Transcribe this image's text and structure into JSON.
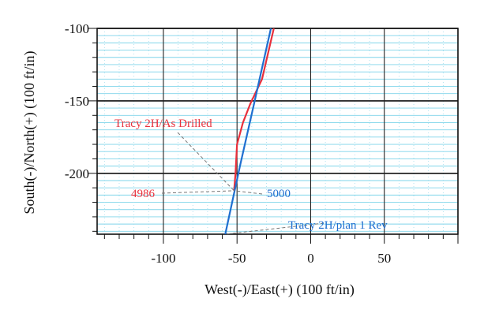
{
  "chart_data": {
    "type": "line",
    "xlabel": "West(-)/East(+) (100 ft/in)",
    "ylabel": "South(-)/North(+) (100 ft/in)",
    "xlim": [
      -145,
      100
    ],
    "ylim": [
      -242,
      -100
    ],
    "x_ticks": [
      -100,
      -50,
      0,
      50
    ],
    "y_ticks": [
      -100,
      -150,
      -200
    ],
    "tick_labels_x": [
      "-100",
      "-50",
      "0",
      "50"
    ],
    "tick_labels_y": [
      "-100",
      "-150",
      "-200"
    ],
    "grid": true,
    "series": [
      {
        "name": "Tracy 2H/As Drilled",
        "color": "#e8303c",
        "points": [
          [
            -25,
            -100
          ],
          [
            -33,
            -135
          ],
          [
            -41,
            -152
          ],
          [
            -46,
            -165
          ],
          [
            -50,
            -180
          ],
          [
            -51,
            -200
          ],
          [
            -52,
            -212
          ]
        ]
      },
      {
        "name": "Tracy 2H/plan 1 Rev",
        "color": "#1f6fd0",
        "points": [
          [
            -27,
            -100
          ],
          [
            -38,
            -150
          ],
          [
            -48,
            -195
          ],
          [
            -58,
            -242
          ]
        ]
      }
    ],
    "annotations": [
      {
        "text": "Tracy 2H/As Drilled",
        "color": "#e8303c",
        "target": [
          -52,
          -212
        ]
      },
      {
        "text": "4986",
        "color": "#e8303c",
        "target": [
          -52,
          -212
        ]
      },
      {
        "text": "5000",
        "color": "#1f6fd0",
        "target": [
          -52,
          -212
        ]
      },
      {
        "text": "Tracy 2H/plan 1 Rev",
        "color": "#1f6fd0",
        "target": [
          -58,
          -242
        ]
      }
    ]
  }
}
